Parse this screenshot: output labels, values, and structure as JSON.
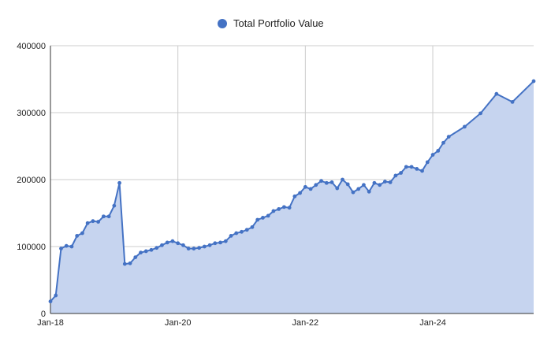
{
  "chart_data": {
    "type": "area",
    "title": "",
    "xlabel": "",
    "ylabel": "",
    "legend": {
      "position": "top-center",
      "entries": [
        "Total Portfolio Value"
      ]
    },
    "grid": true,
    "xlim": [
      "2018-01",
      "2025-08"
    ],
    "ylim": [
      0,
      400000
    ],
    "x_ticks": [
      "Jan-18",
      "Jan-20",
      "Jan-22",
      "Jan-24"
    ],
    "y_ticks": [
      "0",
      "100000",
      "200000",
      "300000",
      "400000"
    ],
    "colors": {
      "line": "#4472c4",
      "fill": "#c6d4ef",
      "grid": "#cccccc"
    },
    "series": [
      {
        "name": "Total Portfolio Value",
        "x": [
          "2018-01",
          "2018-02",
          "2018-03",
          "2018-04",
          "2018-05",
          "2018-06",
          "2018-07",
          "2018-08",
          "2018-09",
          "2018-10",
          "2018-11",
          "2018-12",
          "2019-01",
          "2019-02",
          "2019-03",
          "2019-04",
          "2019-05",
          "2019-06",
          "2019-07",
          "2019-08",
          "2019-09",
          "2019-10",
          "2019-11",
          "2019-12",
          "2020-01",
          "2020-02",
          "2020-03",
          "2020-04",
          "2020-05",
          "2020-06",
          "2020-07",
          "2020-08",
          "2020-09",
          "2020-10",
          "2020-11",
          "2020-12",
          "2021-01",
          "2021-02",
          "2021-03",
          "2021-04",
          "2021-05",
          "2021-06",
          "2021-07",
          "2021-08",
          "2021-09",
          "2021-10",
          "2021-11",
          "2021-12",
          "2022-01",
          "2022-02",
          "2022-03",
          "2022-04",
          "2022-05",
          "2022-06",
          "2022-07",
          "2022-08",
          "2022-09",
          "2022-10",
          "2022-11",
          "2022-12",
          "2023-01",
          "2023-02",
          "2023-03",
          "2023-04",
          "2023-05",
          "2023-06",
          "2023-07",
          "2023-08",
          "2023-09",
          "2023-10",
          "2023-11",
          "2023-12",
          "2024-01",
          "2024-02",
          "2024-03",
          "2024-04",
          "2024-07",
          "2024-10",
          "2025-01",
          "2025-04",
          "2025-08"
        ],
        "values": [
          18000,
          27000,
          97000,
          101000,
          100000,
          116000,
          120000,
          135000,
          138000,
          137000,
          145000,
          145000,
          161000,
          195000,
          74000,
          75000,
          84000,
          91000,
          93000,
          95000,
          98000,
          102000,
          106000,
          108000,
          105000,
          102000,
          97000,
          97000,
          98000,
          100000,
          102000,
          105000,
          106000,
          108000,
          116000,
          120000,
          122000,
          125000,
          129000,
          140000,
          143000,
          146000,
          153000,
          156000,
          159000,
          158000,
          175000,
          180000,
          189000,
          186000,
          192000,
          198000,
          195000,
          196000,
          187000,
          200000,
          193000,
          181000,
          186000,
          192000,
          182000,
          195000,
          192000,
          197000,
          196000,
          206000,
          210000,
          219000,
          219000,
          216000,
          213000,
          226000,
          237000,
          243000,
          255000,
          264000,
          279000,
          299000,
          328000,
          316000,
          347000
        ]
      }
    ]
  }
}
